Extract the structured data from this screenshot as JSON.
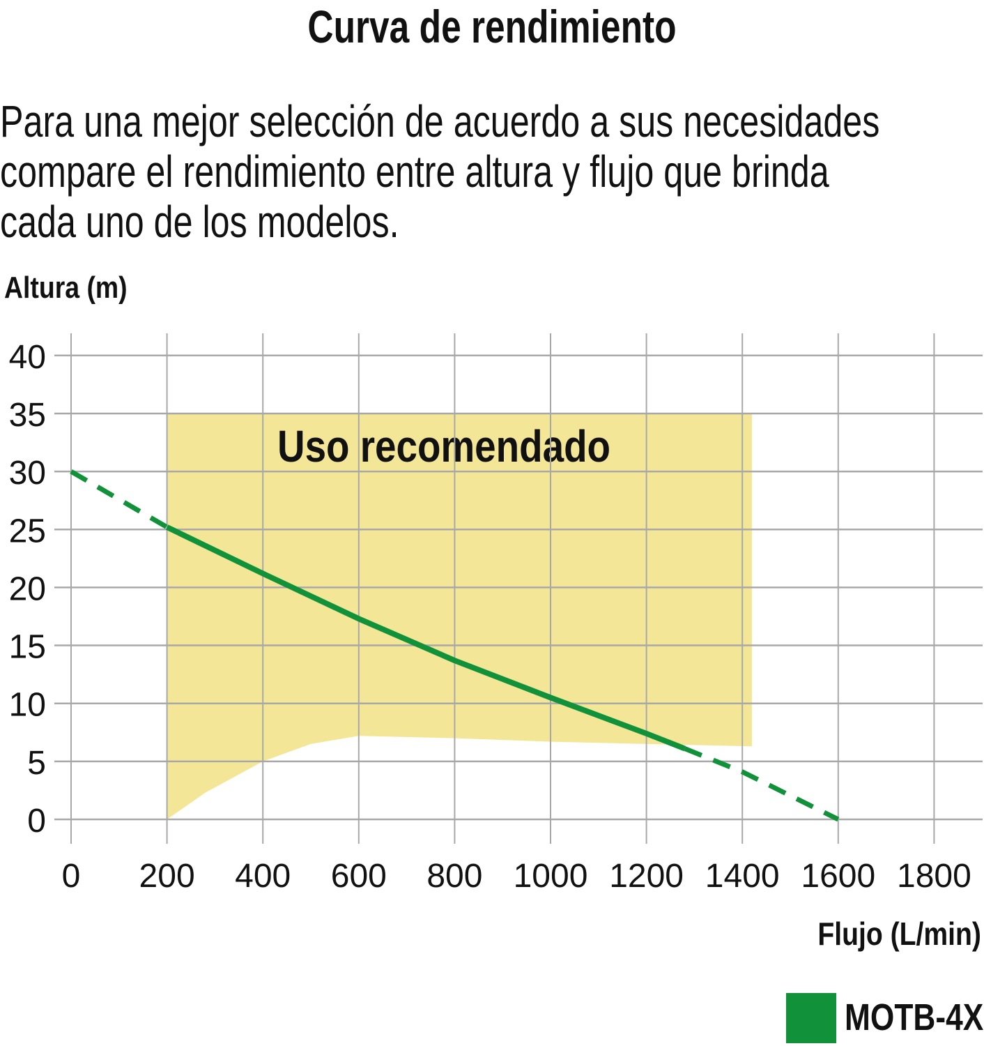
{
  "header": {
    "title": "Curva de rendimiento",
    "description_lines": [
      "Para una mejor selección de acuerdo a sus necesidades",
      "compare el rendimiento entre altura y flujo que brinda",
      "cada uno de los modelos."
    ]
  },
  "colors": {
    "recommended_zone": "#f3e797",
    "curve": "#11913a",
    "grid": "#a8a8a8",
    "text": "#111111"
  },
  "chart_data": {
    "type": "line",
    "title": "",
    "xlabel": "Flujo (L/min)",
    "ylabel": "Altura (m)",
    "xlim": [
      0,
      1900
    ],
    "ylim": [
      -3,
      42
    ],
    "x_ticks": [
      0,
      200,
      400,
      600,
      800,
      1000,
      1200,
      1400,
      1600,
      1800
    ],
    "y_ticks": [
      0,
      5,
      10,
      15,
      20,
      25,
      30,
      35,
      40
    ],
    "grid": true,
    "legend_position": "bottom-right",
    "series": [
      {
        "name": "MOTB-4X",
        "color": "#11913a",
        "x": [
          0,
          200,
          400,
          600,
          800,
          1000,
          1200,
          1280,
          1400,
          1600
        ],
        "y": [
          30,
          25.2,
          21.2,
          17.3,
          13.7,
          10.5,
          7.4,
          6.1,
          4.1,
          0
        ],
        "solid_range": [
          200,
          1280
        ]
      }
    ],
    "recommended_region": {
      "label": "Uso recomendado",
      "x_range": [
        200,
        1420
      ],
      "y_top": 35,
      "lower_boundary": {
        "x": [
          200,
          280,
          400,
          500,
          600,
          800,
          1000,
          1200,
          1420
        ],
        "y": [
          0,
          2.3,
          5,
          6.5,
          7.2,
          7,
          6.7,
          6.5,
          6.3
        ]
      }
    }
  }
}
